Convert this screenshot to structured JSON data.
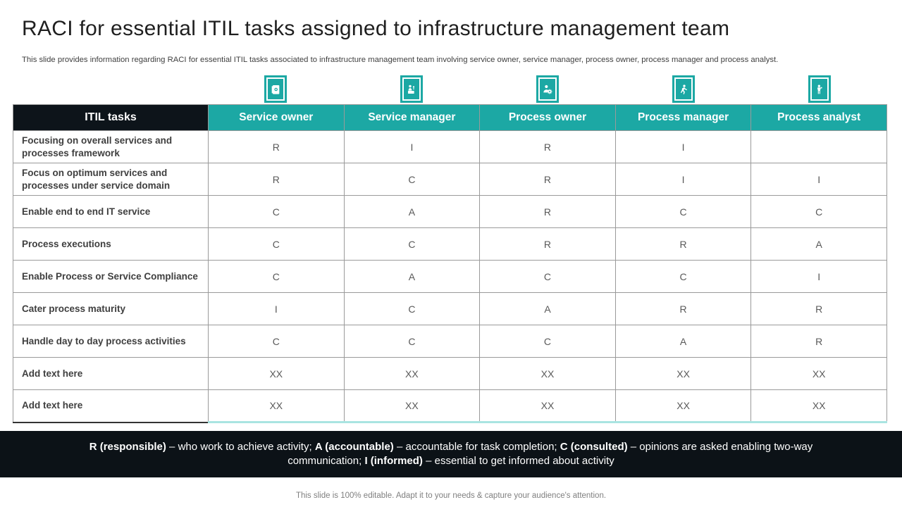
{
  "slide": {
    "title": "RACI for essential ITIL tasks assigned to infrastructure management team",
    "subtitle": "This slide provides information regarding RACI for essential ITIL tasks associated to infrastructure management team involving service owner, service manager, process owner, process manager and process analyst.",
    "caption": "This slide is 100% editable. Adapt it to your needs & capture your audience's attention."
  },
  "colors": {
    "teal": "#1CA8A4",
    "header_black": "#0d141a",
    "legend_band": "#0c1217",
    "border_gray": "#9a9a9a",
    "pale_teal_underline": "#a9e4e1"
  },
  "table": {
    "task_header": "ITIL tasks",
    "columns": [
      {
        "label": "Service owner",
        "icon": "id-card-icon"
      },
      {
        "label": "Service manager",
        "icon": "person-desk-icon"
      },
      {
        "label": "Process owner",
        "icon": "person-gear-icon"
      },
      {
        "label": "Process manager",
        "icon": "person-running-icon"
      },
      {
        "label": "Process analyst",
        "icon": "person-idea-icon"
      }
    ],
    "rows": [
      {
        "task": "Focusing on overall services and processes framework",
        "values": [
          "R",
          "I",
          "R",
          "I",
          ""
        ]
      },
      {
        "task": "Focus on optimum services and processes under service domain",
        "values": [
          "R",
          "C",
          "R",
          "I",
          "I"
        ]
      },
      {
        "task": "Enable end to end IT service",
        "values": [
          "C",
          "A",
          "R",
          "C",
          "C"
        ]
      },
      {
        "task": "Process executions",
        "values": [
          "C",
          "C",
          "R",
          "R",
          "A"
        ]
      },
      {
        "task": "Enable Process or Service Compliance",
        "values": [
          "C",
          "A",
          "C",
          "C",
          "I"
        ]
      },
      {
        "task": "Cater process maturity",
        "values": [
          "I",
          "C",
          "A",
          "R",
          "R"
        ]
      },
      {
        "task": "Handle day to day process activities",
        "values": [
          "C",
          "C",
          "C",
          "A",
          "R"
        ]
      },
      {
        "task": "Add text here",
        "values": [
          "XX",
          "XX",
          "XX",
          "XX",
          "XX"
        ]
      },
      {
        "task": "Add text here",
        "values": [
          "XX",
          "XX",
          "XX",
          "XX",
          "XX"
        ]
      }
    ]
  },
  "legend": {
    "segments": [
      {
        "text": "R (responsible)",
        "bold": true
      },
      {
        "text": " – who work to achieve activity; ",
        "bold": false
      },
      {
        "text": "A (accountable)",
        "bold": true
      },
      {
        "text": " – accountable for task completion; ",
        "bold": false
      },
      {
        "text": "C (consulted)",
        "bold": true
      },
      {
        "text": " – opinions are asked enabling two-way communication; ",
        "bold": false
      },
      {
        "text": "I (informed)",
        "bold": true
      },
      {
        "text": " – essential to get informed about activity",
        "bold": false
      }
    ]
  }
}
